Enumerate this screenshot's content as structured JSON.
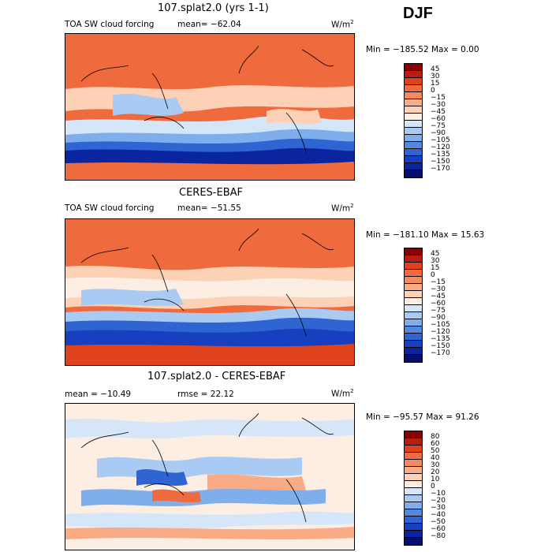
{
  "season": "DJF",
  "panels": [
    {
      "title": "107.splat2.0 (yrs 1-1)",
      "variable": "TOA SW cloud forcing",
      "mean_text": "mean= −62.04",
      "units": "W/m",
      "units_exp": "2",
      "minmax_text": "Min = −185.52 Max =    0.00",
      "colorbar_labels": [
        "45",
        "30",
        "15",
        "0",
        "−15",
        "−30",
        "−45",
        "−60",
        "−75",
        "−90",
        "−105",
        "−120",
        "−135",
        "−150",
        "−170"
      ],
      "colors": [
        "#8b0000",
        "#b81d10",
        "#e0421c",
        "#ef6a3d",
        "#f58a60",
        "#f9ab86",
        "#fcd1b6",
        "#fdeee3",
        "#d6e6f9",
        "#a9cbf3",
        "#7eaeeb",
        "#5288e0",
        "#2f64d3",
        "#1740c0",
        "#0b25a0",
        "#030e6d"
      ]
    },
    {
      "title": "CERES-EBAF",
      "variable": "TOA SW cloud forcing",
      "mean_text": "mean= −51.55",
      "units": "W/m",
      "units_exp": "2",
      "minmax_text": "Min = −181.10 Max =  15.63",
      "colorbar_labels": [
        "45",
        "30",
        "15",
        "0",
        "−15",
        "−30",
        "−45",
        "−60",
        "−75",
        "−90",
        "−105",
        "−120",
        "−135",
        "−150",
        "−170"
      ],
      "colors": [
        "#8b0000",
        "#b81d10",
        "#e0421c",
        "#ef6a3d",
        "#f58a60",
        "#f9ab86",
        "#fcd1b6",
        "#fdeee3",
        "#d6e6f9",
        "#a9cbf3",
        "#7eaeeb",
        "#5288e0",
        "#2f64d3",
        "#1740c0",
        "#0b25a0",
        "#030e6d"
      ]
    },
    {
      "title": "107.splat2.0 - CERES-EBAF",
      "mean_text": "mean = −10.49",
      "rmse_text": "rmse =  22.12",
      "units": "W/m",
      "units_exp": "2",
      "minmax_text": "Min = −95.57 Max =  91.26",
      "colorbar_labels": [
        "80",
        "60",
        "50",
        "40",
        "30",
        "20",
        "10",
        "0",
        "−10",
        "−20",
        "−30",
        "−40",
        "−50",
        "−60",
        "−80"
      ],
      "colors": [
        "#8b0000",
        "#b81d10",
        "#e0421c",
        "#ef6a3d",
        "#f58a60",
        "#f9ab86",
        "#fcd1b6",
        "#fdeee3",
        "#d6e6f9",
        "#a9cbf3",
        "#7eaeeb",
        "#5288e0",
        "#2f64d3",
        "#1740c0",
        "#0b25a0",
        "#030e6d"
      ]
    }
  ]
}
